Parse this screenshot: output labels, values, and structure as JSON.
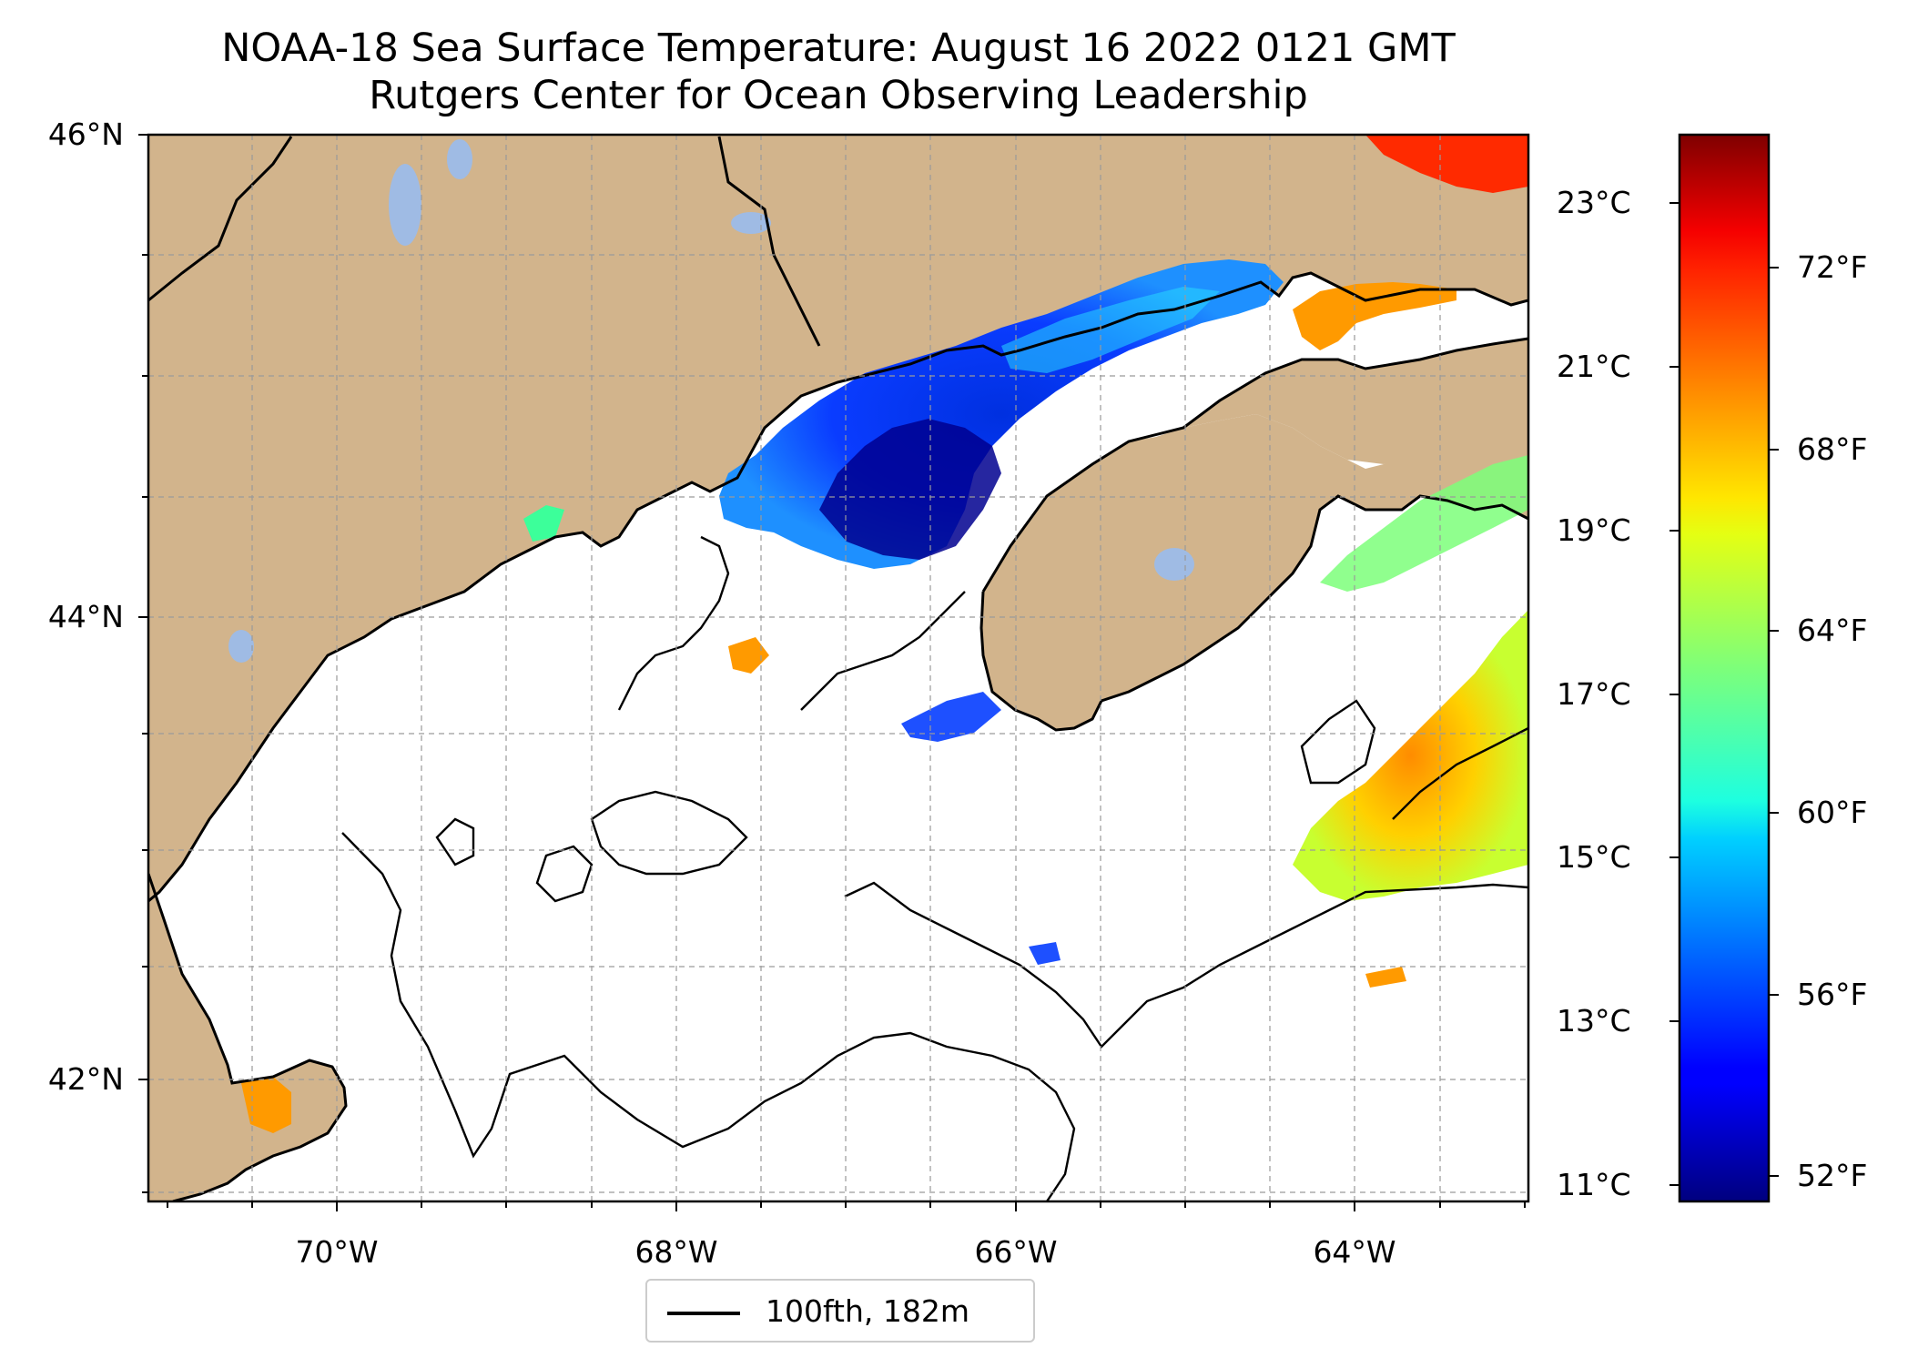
{
  "title": {
    "line1": "NOAA-18 Sea Surface Temperature: August 16 2022 0121 GMT",
    "line2": "Rutgers Center for Ocean Observing Leadership"
  },
  "map": {
    "lat_labels": [
      "46°N",
      "44°N",
      "42°N"
    ],
    "lon_labels": [
      "70°W",
      "68°W",
      "66°W",
      "64°W"
    ],
    "extent": {
      "lon_min": -71.1,
      "lon_max": -63.0,
      "lat_min": 41.5,
      "lat_max": 46.0
    },
    "gridlines": true,
    "colors": {
      "land": "#d2b48c",
      "lakes": "#9fbbe4",
      "ocean_no_data": "#ffffff",
      "coastline": "#000000"
    }
  },
  "colorbar": {
    "colormap": "jet",
    "celsius_ticks": [
      "23°C",
      "21°C",
      "19°C",
      "17°C",
      "15°C",
      "13°C",
      "11°C"
    ],
    "fahrenheit_ticks": [
      "72°F",
      "68°F",
      "64°F",
      "60°F",
      "56°F",
      "52°F"
    ],
    "range_celsius": [
      10.8,
      23.8
    ]
  },
  "legend": {
    "entry": "100fth, 182m",
    "color": "#000000"
  }
}
